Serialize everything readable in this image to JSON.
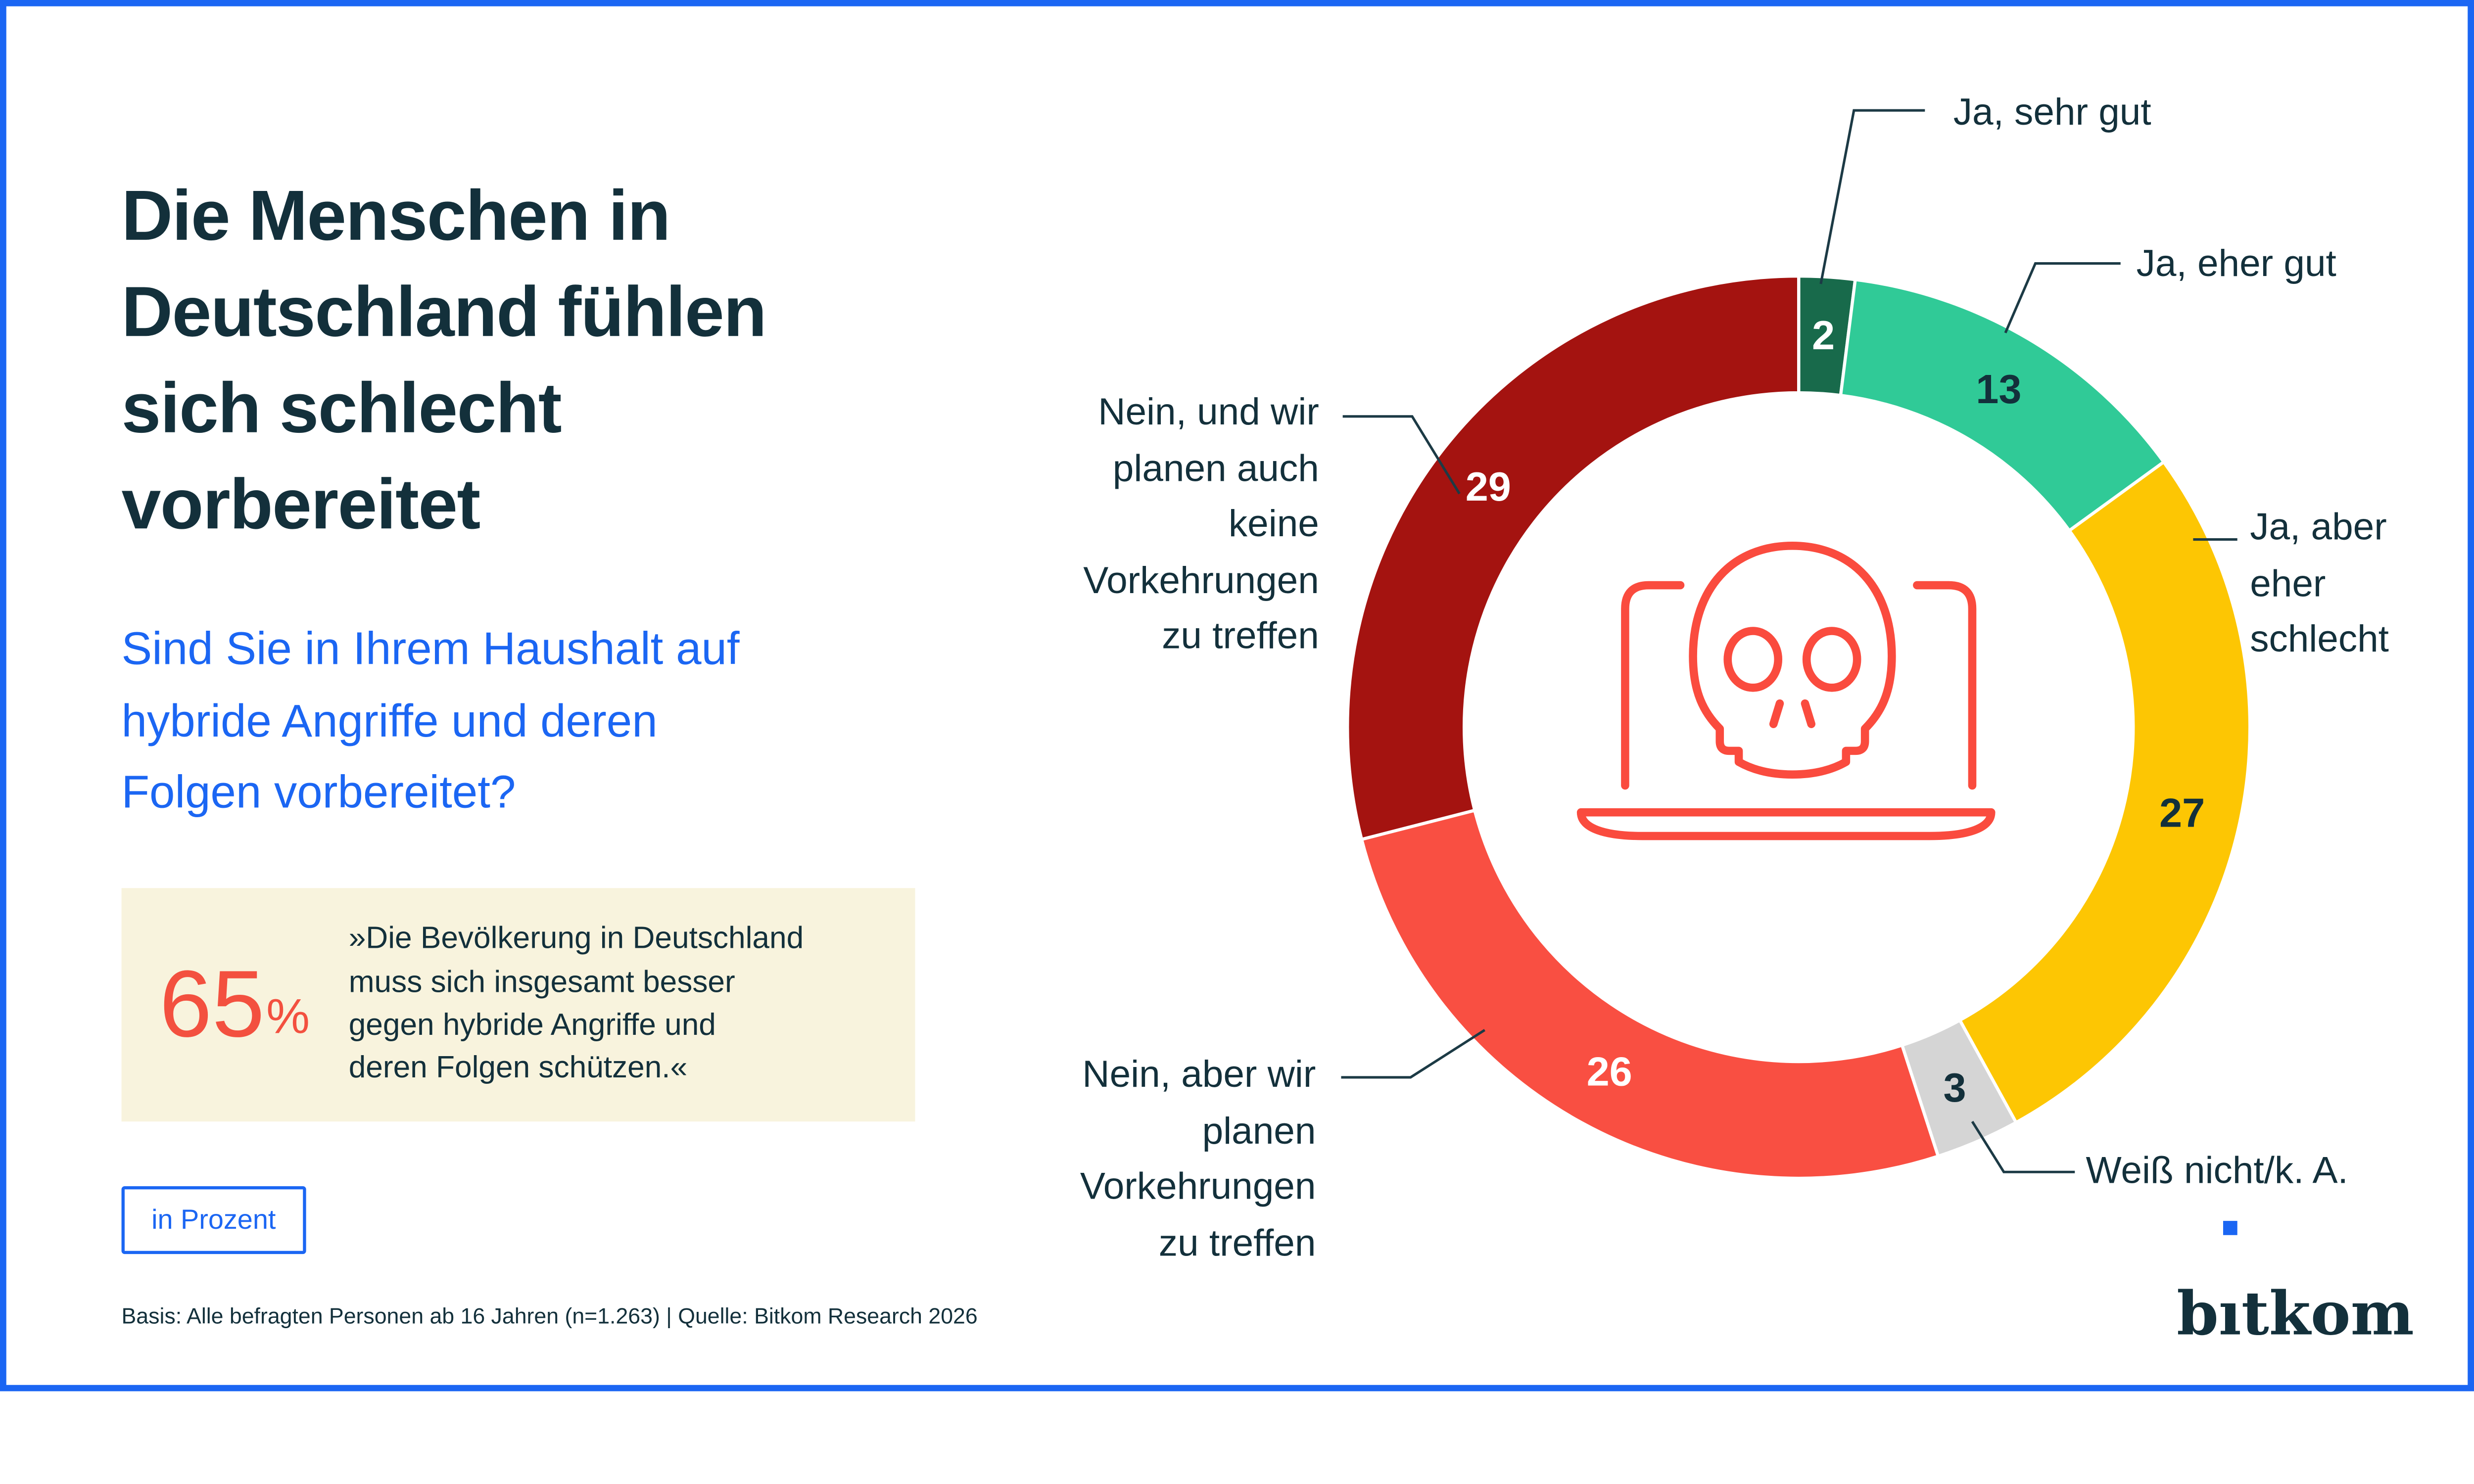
{
  "page": {
    "background": "#ffffff",
    "border_color": "#1b66f3"
  },
  "header": {
    "title_lines": [
      "Die Menschen in",
      "Deutschland fühlen",
      "sich schlecht",
      "vorbereitet"
    ],
    "title_color": "#13303b",
    "question_lines": [
      "Sind Sie in Ihrem Haushalt auf",
      "hybride Angriffe und deren",
      "Folgen vorbereitet?"
    ],
    "question_color": "#1b66f3"
  },
  "highlight_box": {
    "background": "#f8f3dd",
    "value": "65",
    "unit": "%",
    "value_color": "#f3503f",
    "quote_lines": [
      "»Die Bevölkerung in Deutschland",
      "muss sich insgesamt besser",
      "gegen hybride Angriffe und",
      "deren Folgen schützen.«"
    ]
  },
  "unit_badge": {
    "label": "in Prozent"
  },
  "footer": {
    "text": "Basis: Alle befragten Personen ab 16 Jahren (n=1.263) | Quelle: Bitkom Research 2026"
  },
  "logo": {
    "text": "bitkom",
    "color": "#13303b",
    "dot_color": "#1b66f3"
  },
  "chart_data": {
    "type": "pie",
    "subtype": "donut",
    "title": "Sind Sie in Ihrem Haushalt auf hybride Angriffe und deren Folgen vorbereitet?",
    "unit": "percent",
    "total": 100,
    "start_angle_deg": 0,
    "direction": "clockwise",
    "legend_position": "callouts",
    "categories": [
      "Ja, sehr gut",
      "Ja, eher gut",
      "Ja, aber eher schlecht",
      "Weiß nicht/k. A.",
      "Nein, aber wir planen Vorkehrungen zu treffen",
      "Nein, und wir planen auch keine Vorkehrungen zu treffen"
    ],
    "values": [
      2,
      13,
      27,
      3,
      26,
      29
    ],
    "segments": [
      {
        "label": "Ja, sehr gut",
        "value": 2,
        "color": "#186a4b",
        "value_color": "#ffffff",
        "callout_lines": [
          "Ja, sehr gut"
        ]
      },
      {
        "label": "Ja, eher gut",
        "value": 13,
        "color": "#30ca97",
        "value_color": "#13303b",
        "callout_lines": [
          "Ja, eher gut"
        ]
      },
      {
        "label": "Ja, aber eher schlecht",
        "value": 27,
        "color": "#fdc603",
        "value_color": "#13303b",
        "callout_lines": [
          "Ja, aber",
          "eher",
          "schlecht"
        ]
      },
      {
        "label": "Weiß nicht/k. A.",
        "value": 3,
        "color": "#d5d5d5",
        "value_color": "#13303b",
        "callout_lines": [
          "Weiß nicht/k. A."
        ]
      },
      {
        "label": "Nein, aber wir planen Vorkehrungen zu treffen",
        "value": 26,
        "color": "#f94f42",
        "value_color": "#ffffff",
        "callout_lines": [
          "Nein, aber wir",
          "planen",
          "Vorkehrungen",
          "zu treffen"
        ]
      },
      {
        "label": "Nein, und wir planen auch keine Vorkehrungen zu treffen",
        "value": 29,
        "color": "#a41310",
        "value_color": "#ffffff",
        "callout_lines": [
          "Nein, und wir",
          "planen auch",
          "keine",
          "Vorkehrungen",
          "zu treffen"
        ]
      }
    ],
    "center_icon": "laptop-skull-icon",
    "icon_color": "#fa4b3e",
    "leader_line_color": "#1c3a45"
  }
}
